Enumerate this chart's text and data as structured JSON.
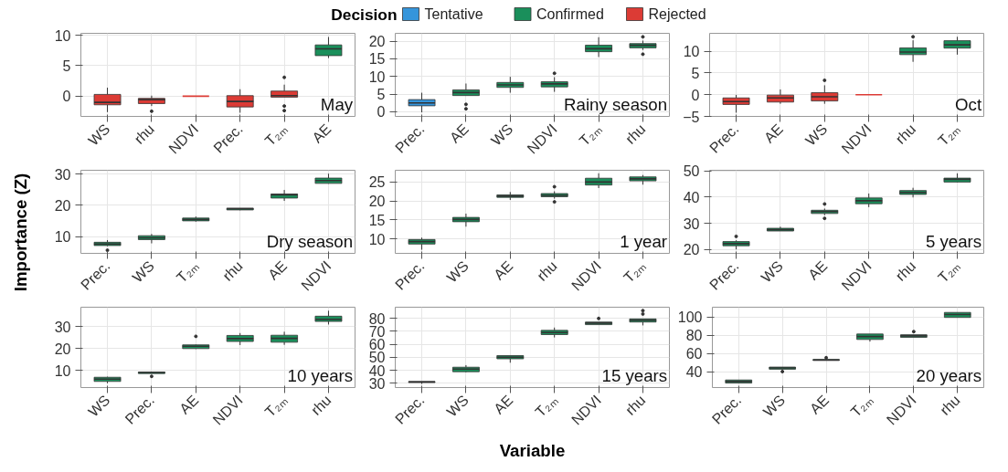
{
  "chart_data": [
    {
      "type": "box",
      "title": "May",
      "categories": [
        "WS",
        "rhu",
        "NDVI",
        "Prec.",
        "T₂ₘ",
        "AE"
      ],
      "ylim": [
        -3.3,
        10.3
      ],
      "yticks": [
        0,
        5,
        10
      ],
      "grid": true,
      "series": [
        {
          "color": "#1a8f5b",
          "boxes": [
            null,
            null,
            null,
            null,
            null,
            {
              "low": 6.25,
              "q1": 6.65,
              "median": 7.75,
              "q3": 8.4,
              "high": 9.7
            }
          ]
        },
        {
          "color": "#dc3b35",
          "boxes": [
            {
              "low": -2.6,
              "q1": -1.4,
              "median": -1.0,
              "q3": 0.3,
              "high": 1.4
            },
            {
              "low": -1.6,
              "q1": -1.2,
              "median": -0.55,
              "q3": -0.35,
              "high": 0.1,
              "outliers": [
                -2.45
              ]
            },
            {
              "low": 0,
              "q1": 0,
              "median": 0,
              "q3": 0,
              "high": 0
            },
            {
              "low": -2.7,
              "q1": -1.75,
              "median": -0.85,
              "q3": 0.1,
              "high": 1.15
            },
            {
              "low": -0.15,
              "q1": -0.15,
              "median": 0.1,
              "q3": 0.85,
              "high": 1.9,
              "outliers": [
                3.1,
                -1.6,
                -2.35
              ]
            },
            null
          ]
        }
      ]
    },
    {
      "type": "box",
      "title": "Rainy season",
      "categories": [
        "Prec.",
        "AE",
        "WS",
        "NDVI",
        "T₂ₘ",
        "rhu"
      ],
      "ylim": [
        -1.3,
        22.2
      ],
      "yticks": [
        0,
        5,
        10,
        15,
        20
      ],
      "grid": true,
      "legend": "top",
      "legend_title": "Decision",
      "series": [
        {
          "name": "Tentative",
          "color": "#3595db",
          "boxes": [
            {
              "low": -0.15,
              "q1": 1.7,
              "median": 2.5,
              "q3": 3.45,
              "high": 5.4
            },
            null,
            null,
            null,
            null,
            null
          ]
        },
        {
          "name": "Confirmed",
          "color": "#1a8f5b",
          "boxes": [
            null,
            {
              "low": 4.6,
              "q1": 4.6,
              "median": 5.45,
              "q3": 6.2,
              "high": 8.0,
              "outliers": [
                2.1,
                0.85
              ]
            },
            {
              "low": 5.4,
              "q1": 6.9,
              "median": 7.6,
              "q3": 8.3,
              "high": 9.9
            },
            {
              "low": 5.65,
              "q1": 7.05,
              "median": 7.9,
              "q3": 8.5,
              "high": 9.8,
              "outliers": [
                10.9
              ]
            },
            {
              "low": 15.5,
              "q1": 17.0,
              "median": 17.85,
              "q3": 18.85,
              "high": 21.1
            },
            {
              "low": 17.5,
              "q1": 18.1,
              "median": 18.8,
              "q3": 19.3,
              "high": 20.15,
              "outliers": [
                21.2,
                16.3
              ]
            }
          ]
        },
        {
          "name": "Rejected",
          "color": "#dc3b35",
          "boxes": [
            null,
            null,
            null,
            null,
            null,
            null
          ]
        }
      ]
    },
    {
      "type": "box",
      "title": "Oct",
      "categories": [
        "Prec.",
        "AE",
        "WS",
        "NDVI",
        "rhu",
        "T₂ₘ"
      ],
      "ylim": [
        -5,
        14.1
      ],
      "yticks": [
        -5,
        0,
        5,
        10
      ],
      "grid": true,
      "series": [
        {
          "color": "#1a8f5b",
          "boxes": [
            null,
            null,
            null,
            null,
            {
              "low": 7.55,
              "q1": 9.2,
              "median": 9.8,
              "q3": 10.75,
              "high": 12.5,
              "outliers": [
                13.3
              ]
            },
            {
              "low": 9.2,
              "q1": 10.7,
              "median": 11.45,
              "q3": 12.4,
              "high": 13.3
            }
          ]
        },
        {
          "color": "#dc3b35",
          "boxes": [
            {
              "low": -4.15,
              "q1": -2.25,
              "median": -1.6,
              "q3": -0.75,
              "high": -0.05
            },
            {
              "low": -2.1,
              "q1": -1.7,
              "median": -0.75,
              "q3": -0.1,
              "high": 1.2
            },
            {
              "low": -2.1,
              "q1": -1.45,
              "median": -0.5,
              "q3": 0.45,
              "high": 2.15,
              "outliers": [
                3.3
              ]
            },
            {
              "low": 0,
              "q1": 0,
              "median": 0,
              "q3": 0,
              "high": 0
            },
            null,
            null
          ]
        }
      ]
    },
    {
      "type": "box",
      "title": "Dry season",
      "ylabel": "Importance (Z)",
      "categories": [
        "Prec.",
        "WS",
        "T₂ₘ",
        "rhu",
        "AE",
        "NDVI"
      ],
      "ylim": [
        4.6,
        31.2
      ],
      "yticks": [
        10,
        20,
        30
      ],
      "grid": true,
      "series": [
        {
          "color": "#1a8f5b",
          "boxes": [
            {
              "low": 6.9,
              "q1": 7.1,
              "median": 7.6,
              "q3": 8.15,
              "high": 8.85,
              "outliers": [
                5.6
              ]
            },
            {
              "low": 7.8,
              "q1": 9.0,
              "median": 9.55,
              "q3": 10.25,
              "high": 10.8
            },
            {
              "low": 14.75,
              "q1": 15.0,
              "median": 15.45,
              "q3": 15.9,
              "high": 16.4
            },
            {
              "low": 18.4,
              "q1": 18.5,
              "median": 18.85,
              "q3": 19.1,
              "high": 19.1
            },
            {
              "low": 21.4,
              "q1": 22.3,
              "median": 23.35,
              "q3": 23.6,
              "high": 24.9
            },
            {
              "low": 26.9,
              "q1": 27.0,
              "median": 27.9,
              "q3": 28.7,
              "high": 30.1
            }
          ]
        }
      ]
    },
    {
      "type": "box",
      "title": "1 year",
      "categories": [
        "Prec.",
        "WS",
        "AE",
        "rhu",
        "NDVI",
        "T₂ₘ"
      ],
      "ylim": [
        6.15,
        28.1
      ],
      "yticks": [
        10,
        15,
        20,
        25
      ],
      "grid": true,
      "series": [
        {
          "color": "#1a8f5b",
          "boxes": [
            {
              "low": 7.1,
              "q1": 8.6,
              "median": 9.25,
              "q3": 9.8,
              "high": 10.3
            },
            {
              "low": 13.2,
              "q1": 14.5,
              "median": 15.1,
              "q3": 15.65,
              "high": 16.65
            },
            {
              "low": 20.25,
              "q1": 20.95,
              "median": 21.25,
              "q3": 21.6,
              "high": 22.35
            },
            {
              "low": 20.6,
              "q1": 21.1,
              "median": 21.45,
              "q3": 21.95,
              "high": 22.55,
              "outliers": [
                23.75,
                19.75
              ]
            },
            {
              "low": 23.4,
              "q1": 24.2,
              "median": 25.0,
              "q3": 26.0,
              "high": 27.3
            },
            {
              "low": 24.3,
              "q1": 25.3,
              "median": 25.85,
              "q3": 26.35,
              "high": 26.85
            }
          ]
        }
      ]
    },
    {
      "type": "box",
      "title": "5 years",
      "categories": [
        "Prec.",
        "WS",
        "AE",
        "NDVI",
        "rhu",
        "T₂ₘ"
      ],
      "ylim": [
        18.5,
        50.3
      ],
      "yticks": [
        20,
        30,
        40,
        50
      ],
      "grid": true,
      "series": [
        {
          "color": "#1a8f5b",
          "boxes": [
            {
              "low": 20.0,
              "q1": 21.4,
              "median": 22.2,
              "q3": 23.0,
              "high": 23.5,
              "outliers": [
                25.0
              ]
            },
            {
              "low": 27.05,
              "q1": 27.05,
              "median": 27.55,
              "q3": 28.1,
              "high": 28.7
            },
            {
              "low": 33.1,
              "q1": 33.75,
              "median": 34.5,
              "q3": 35.0,
              "high": 35.65,
              "outliers": [
                37.4,
                31.9
              ]
            },
            {
              "low": 36.2,
              "q1": 37.5,
              "median": 38.65,
              "q3": 39.7,
              "high": 41.4
            },
            {
              "low": 39.9,
              "q1": 41.05,
              "median": 41.8,
              "q3": 42.55,
              "high": 43.6
            },
            {
              "low": 45.6,
              "q1": 45.8,
              "median": 46.85,
              "q3": 47.3,
              "high": 49.1
            }
          ]
        }
      ]
    },
    {
      "type": "box",
      "title": "10 years",
      "categories": [
        "WS",
        "Prec.",
        "AE",
        "NDVI",
        "T₂ₘ",
        "rhu"
      ],
      "ylim": [
        2.2,
        38.9
      ],
      "yticks": [
        10,
        20,
        30
      ],
      "grid": true,
      "series": [
        {
          "color": "#1a8f5b",
          "boxes": [
            {
              "low": 4.15,
              "q1": 5.0,
              "median": 6.05,
              "q3": 6.9,
              "high": 7.15
            },
            {
              "low": 8.6,
              "q1": 8.6,
              "median": 9.05,
              "q3": 9.3,
              "high": 9.4,
              "outliers": [
                7.3
              ]
            },
            {
              "low": 19.8,
              "q1": 20.0,
              "median": 21.1,
              "q3": 21.7,
              "high": 21.9,
              "outliers": [
                25.6
              ]
            },
            {
              "low": 21.6,
              "q1": 23.25,
              "median": 24.55,
              "q3": 26.0,
              "high": 27.1
            },
            {
              "low": 21.7,
              "q1": 22.9,
              "median": 24.65,
              "q3": 26.1,
              "high": 27.7
            },
            {
              "low": 31.0,
              "q1": 32.4,
              "median": 33.35,
              "q3": 34.8,
              "high": 37.3
            }
          ]
        }
      ]
    },
    {
      "type": "box",
      "title": "15 years",
      "xlabel": "Variable",
      "categories": [
        "Prec.",
        "WS",
        "AE",
        "T₂ₘ",
        "NDVI",
        "rhu"
      ],
      "ylim": [
        26.8,
        88.6
      ],
      "yticks": [
        30,
        40,
        50,
        60,
        70,
        80
      ],
      "grid": true,
      "series": [
        {
          "color": "#1a8f5b",
          "boxes": [
            {
              "low": 29.6,
              "q1": 30.8,
              "median": 31.1,
              "q3": 31.4,
              "high": 31.4
            },
            {
              "low": 38.6,
              "q1": 39.0,
              "median": 41.05,
              "q3": 42.45,
              "high": 44.05
            },
            {
              "low": 45.9,
              "q1": 48.9,
              "median": 50.1,
              "q3": 51.4,
              "high": 51.4
            },
            {
              "low": 65.35,
              "q1": 67.55,
              "median": 69.15,
              "q3": 70.8,
              "high": 72.95
            },
            {
              "low": 75.2,
              "q1": 75.2,
              "median": 76.4,
              "q3": 77.2,
              "high": 77.2,
              "outliers": [
                80.0
              ]
            },
            {
              "low": 74.6,
              "q1": 77.2,
              "median": 78.6,
              "q3": 79.6,
              "high": 79.6,
              "outliers": [
                86.0,
                83.4
              ]
            }
          ]
        }
      ]
    },
    {
      "type": "box",
      "title": "20 years",
      "categories": [
        "Prec.",
        "WS",
        "AE",
        "T₂ₘ",
        "NDVI",
        "rhu"
      ],
      "ylim": [
        22.7,
        110.6
      ],
      "yticks": [
        40,
        60,
        80,
        100
      ],
      "grid": true,
      "series": [
        {
          "color": "#1a8f5b",
          "boxes": [
            {
              "low": 27.6,
              "q1": 27.6,
              "median": 29.3,
              "q3": 31.0,
              "high": 31.0
            },
            {
              "low": 42.8,
              "q1": 42.8,
              "median": 44.25,
              "q3": 45.1,
              "high": 45.1,
              "outliers": [
                40.2
              ]
            },
            {
              "low": 52.3,
              "q1": 52.3,
              "median": 52.9,
              "q3": 53.4,
              "high": 53.4,
              "outliers": [
                55.4
              ]
            },
            {
              "low": 73.0,
              "q1": 75.3,
              "median": 78.5,
              "q3": 81.3,
              "high": 81.3
            },
            {
              "low": 77.6,
              "q1": 77.6,
              "median": 79.3,
              "q3": 80.5,
              "high": 80.5,
              "outliers": [
                83.9
              ]
            },
            {
              "low": 99.4,
              "q1": 99.4,
              "median": 102.6,
              "q3": 104.9,
              "high": 104.9
            }
          ]
        }
      ]
    }
  ]
}
